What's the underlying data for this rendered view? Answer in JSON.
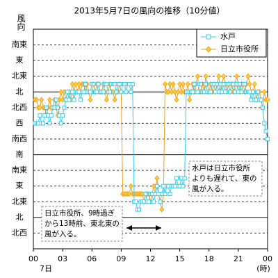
{
  "chart_data": {
    "type": "line",
    "title": "2013年5月7日の風向の推移（10分値）",
    "y_label": "風向",
    "x_sub_label": "7日",
    "x_unit_label": "(時)",
    "x": [
      10,
      20,
      30,
      40,
      50,
      60,
      70,
      80,
      90,
      100,
      110,
      120,
      130,
      140,
      150,
      160,
      170,
      180,
      190,
      200,
      210,
      220,
      230,
      240,
      250,
      260,
      270,
      280,
      290,
      300,
      310,
      320,
      330,
      340,
      350,
      360,
      370,
      380,
      390,
      400,
      410,
      420,
      430,
      440,
      450,
      460,
      470,
      480,
      490,
      500,
      510,
      520,
      530,
      540,
      550,
      560,
      570,
      580,
      590,
      600,
      610,
      620,
      630,
      640,
      650,
      660,
      670,
      680,
      690,
      700,
      710,
      720,
      730,
      740,
      750,
      760,
      770,
      780,
      790,
      800,
      810,
      820,
      830,
      840,
      850,
      860,
      870,
      880,
      890,
      900,
      910,
      920,
      930,
      940,
      950,
      960,
      970,
      980,
      990,
      1000,
      1010,
      1020,
      1030,
      1040,
      1050,
      1060,
      1070,
      1080,
      1090,
      1100,
      1110,
      1120,
      1130,
      1140,
      1150,
      1160,
      1170,
      1180,
      1190,
      1200,
      1210,
      1220,
      1230,
      1240,
      1250,
      1260,
      1270,
      1280,
      1290,
      1300,
      1310,
      1320,
      1330,
      1340,
      1350,
      1360,
      1370,
      1380,
      1390,
      1400,
      1410,
      1420,
      1430,
      1440
    ],
    "series": [
      {
        "name": "水戸",
        "color": "#33ccee",
        "marker": "square",
        "values": [
          7,
          7,
          7,
          7.5,
          7,
          7,
          7.5,
          8,
          7.5,
          7,
          7.5,
          8,
          8,
          8.5,
          8,
          7.5,
          7,
          7.5,
          8,
          8.5,
          9,
          8.5,
          9,
          9,
          8.5,
          9,
          9,
          9,
          8.5,
          9,
          9,
          9.5,
          9,
          9,
          9,
          9.5,
          9.5,
          9,
          9,
          9.5,
          9,
          9,
          9,
          9.5,
          9.5,
          9,
          9,
          9.5,
          9.5,
          9.5,
          9,
          9.5,
          9.5,
          9,
          9.5,
          9.5,
          9,
          9.5,
          9.5,
          9,
          9.5,
          2,
          2,
          1.5,
          1.5,
          2,
          2,
          2,
          2.5,
          2,
          2,
          2.5,
          2.5,
          2,
          2.5,
          3,
          2.5,
          2,
          2.5,
          3,
          2.5,
          3,
          3,
          2.5,
          3,
          3,
          3,
          3.5,
          3,
          3,
          3.5,
          3,
          3.5,
          9,
          9,
          9,
          9,
          9,
          9.5,
          9,
          9,
          9.5,
          9.5,
          9,
          9,
          9.5,
          9,
          9,
          9,
          9.5,
          9.5,
          9,
          9.5,
          9,
          9.5,
          9,
          9.5,
          9,
          9.5,
          9.5,
          9,
          9.5,
          9.5,
          9,
          9.5,
          9,
          9.5,
          9,
          9.5,
          9.5,
          9,
          9,
          9,
          8.5,
          9,
          8.5,
          8.5,
          9,
          8.5,
          8.5,
          8,
          7,
          6.5,
          6
        ]
      },
      {
        "name": "日立市役所",
        "color": "#f0a020",
        "marker": "diamond",
        "values": [
          8.5,
          8.5,
          8,
          8,
          8.5,
          8,
          8,
          7.5,
          8,
          8.5,
          8,
          8,
          8.5,
          8,
          7.5,
          8.5,
          9,
          8.5,
          9,
          8.5,
          9,
          9,
          8.5,
          9.5,
          9,
          9.5,
          9,
          9.5,
          9,
          9.5,
          9.5,
          9,
          9.5,
          9,
          8.5,
          9,
          9.5,
          9,
          9.5,
          9.5,
          9,
          9,
          9.5,
          9,
          8.5,
          9,
          9.5,
          9,
          9,
          8.5,
          9,
          9,
          9.5,
          9,
          2.5,
          2.5,
          2.5,
          2.5,
          2.5,
          3,
          2.5,
          2.5,
          2.5,
          2.5,
          2.5,
          2.5,
          2.5,
          2,
          2.5,
          2.5,
          2.5,
          2,
          2.5,
          3,
          2.5,
          3.5,
          2.5,
          2,
          1.5,
          2.5,
          9.5,
          9,
          9,
          9.5,
          9,
          9.5,
          9,
          8.5,
          9,
          9.5,
          9,
          9.5,
          9,
          9,
          9.5,
          8.5,
          9,
          9.5,
          9,
          9.5,
          10,
          9,
          9,
          9.5,
          9,
          10,
          9.5,
          9,
          9.5,
          9,
          9.5,
          9,
          9.5,
          10,
          9,
          9.5,
          10,
          9.5,
          9,
          9.5,
          9,
          9.5,
          9,
          9.5,
          10,
          9.5,
          9,
          9.5,
          9.5,
          9,
          9.5,
          10,
          9.5,
          9,
          9,
          9.5,
          8.5,
          9,
          9,
          8.5,
          8,
          9,
          8.5,
          8.5
        ]
      }
    ],
    "xlim": [
      0,
      1440
    ],
    "xticks": [
      {
        "value": 0,
        "label": "00"
      },
      {
        "value": 180,
        "label": "03"
      },
      {
        "value": 360,
        "label": "06"
      },
      {
        "value": 540,
        "label": "09"
      },
      {
        "value": 720,
        "label": "12"
      },
      {
        "value": 900,
        "label": "15"
      },
      {
        "value": 1080,
        "label": "18"
      },
      {
        "value": 1260,
        "label": "21"
      },
      {
        "value": 1440,
        "label": "00"
      }
    ],
    "ylim": [
      -1,
      13
    ],
    "yticks": [
      {
        "value": 0,
        "label": "北西"
      },
      {
        "value": 1,
        "label": "北"
      },
      {
        "value": 2,
        "label": "北東"
      },
      {
        "value": 3,
        "label": "東"
      },
      {
        "value": 4,
        "label": "南東"
      },
      {
        "value": 5,
        "label": "南"
      },
      {
        "value": 6,
        "label": "南西"
      },
      {
        "value": 7,
        "label": "西"
      },
      {
        "value": 8,
        "label": "北西"
      },
      {
        "value": 9,
        "label": "北"
      },
      {
        "value": 10,
        "label": "北東"
      },
      {
        "value": 11,
        "label": "東"
      },
      {
        "value": 12,
        "label": "南東"
      }
    ],
    "grid": true,
    "legend": "upper right",
    "annotations": [
      {
        "lines": [
          "日立市役所、9時過ぎ",
          "から13時前、東北東の",
          "風が入る。"
        ]
      },
      {
        "lines": [
          "水戸は日立市役所",
          "よりも遅れて、東の",
          "風が入る。"
        ]
      }
    ]
  }
}
